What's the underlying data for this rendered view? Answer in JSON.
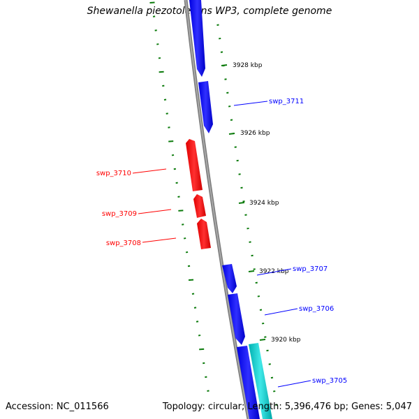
{
  "title": "Shewanella piezotolerans WP3, complete genome",
  "footer": {
    "accession": "Accession: NC_011566",
    "summary": "Topology: circular; Length: 5,396,476 bp; Genes: 5,047"
  },
  "colors": {
    "forward_gene": "#0000ff",
    "forward_gene_light": "#6a6aff",
    "reverse_gene": "#ff0000",
    "reverse_gene_light": "#ff6a6a",
    "rna_gene": "#00c8c8",
    "rna_gene_light": "#8ff0f0",
    "backbone": "#808080",
    "tick": "#0a7a0a"
  },
  "ticks": [
    {
      "label": "3928 kbp"
    },
    {
      "label": "3926 kbp"
    },
    {
      "label": "3924 kbp"
    },
    {
      "label": "3922 kbp"
    },
    {
      "label": "3920 kbp"
    }
  ],
  "genes": [
    {
      "label": "swp_3711",
      "strand": "forward"
    },
    {
      "label": "swp_3710",
      "strand": "reverse"
    },
    {
      "label": "swp_3709",
      "strand": "reverse"
    },
    {
      "label": "swp_3708",
      "strand": "reverse"
    },
    {
      "label": "swp_3707",
      "strand": "forward"
    },
    {
      "label": "swp_3706",
      "strand": "forward"
    },
    {
      "label": "swp_3705",
      "strand": "forward"
    }
  ]
}
